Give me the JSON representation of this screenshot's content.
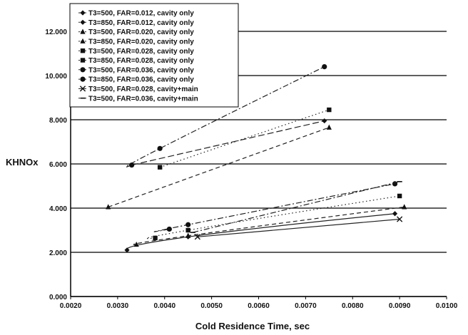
{
  "chart_data": {
    "type": "scatter",
    "title": "",
    "xlabel": "Cold Residence Time, sec",
    "ylabel": "KHNOx",
    "xlim": [
      0.002,
      0.01
    ],
    "ylim": [
      0,
      12
    ],
    "x_ticks": [
      "0.0020",
      "0.0030",
      "0.0040",
      "0.0050",
      "0.0060",
      "0.0070",
      "0.0080",
      "0.0090",
      "0.0100"
    ],
    "y_ticks": [
      "0.000",
      "2.000",
      "4.000",
      "6.000",
      "8.000",
      "10.000",
      "12.000"
    ],
    "grid": "horizontal",
    "legend_position": "top-left",
    "series": [
      {
        "name": "T3=500, FAR=0.012, cavity only",
        "marker": "diamond",
        "line": "solid",
        "points": [
          [
            0.0032,
            2.1
          ],
          [
            0.0045,
            2.7
          ],
          [
            0.0089,
            3.75
          ]
        ]
      },
      {
        "name": "T3=850, FAR=0.012, cavity only",
        "marker": "diamond",
        "line": "longdash",
        "points": [
          [
            0.0033,
            5.95
          ],
          [
            0.0074,
            7.95
          ]
        ]
      },
      {
        "name": "T3=500, FAR=0.020, cavity only",
        "marker": "triangle",
        "line": "dash",
        "points": [
          [
            0.0034,
            2.35
          ],
          [
            0.0045,
            2.75
          ],
          [
            0.0091,
            4.05
          ]
        ]
      },
      {
        "name": "T3=850, FAR=0.020, cavity only",
        "marker": "triangle",
        "line": "dash",
        "points": [
          [
            0.0028,
            4.05
          ],
          [
            0.0075,
            7.65
          ]
        ]
      },
      {
        "name": "T3=500, FAR=0.028, cavity only",
        "marker": "square",
        "line": "dot",
        "points": [
          [
            0.0038,
            2.65
          ],
          [
            0.0045,
            3.0
          ],
          [
            0.009,
            4.55
          ]
        ]
      },
      {
        "name": "T3=850, FAR=0.028, cavity only",
        "marker": "square",
        "line": "dot",
        "points": [
          [
            0.0039,
            5.85
          ],
          [
            0.0075,
            8.45
          ]
        ]
      },
      {
        "name": "T3=500, FAR=0.036, cavity only",
        "marker": "circle",
        "line": "dashdot",
        "points": [
          [
            0.0041,
            3.05
          ],
          [
            0.0045,
            3.25
          ],
          [
            0.0089,
            5.1
          ]
        ]
      },
      {
        "name": "T3=850, FAR=0.036, cavity only",
        "marker": "circle",
        "line": "dashdot",
        "points": [
          [
            0.0033,
            5.95
          ],
          [
            0.0039,
            6.7
          ],
          [
            0.0074,
            10.4
          ]
        ]
      },
      {
        "name": "T3=500, FAR=0.028, cavity+main",
        "marker": "x",
        "line": "solid",
        "points": [
          [
            0.0047,
            2.7
          ],
          [
            0.009,
            3.5
          ]
        ]
      },
      {
        "name": "T3=500, FAR=0.036, cavity+main",
        "marker": "dash",
        "line": "dashdot",
        "points": [
          [
            0.0046,
            2.9
          ],
          [
            0.009,
            5.2
          ]
        ]
      }
    ]
  }
}
